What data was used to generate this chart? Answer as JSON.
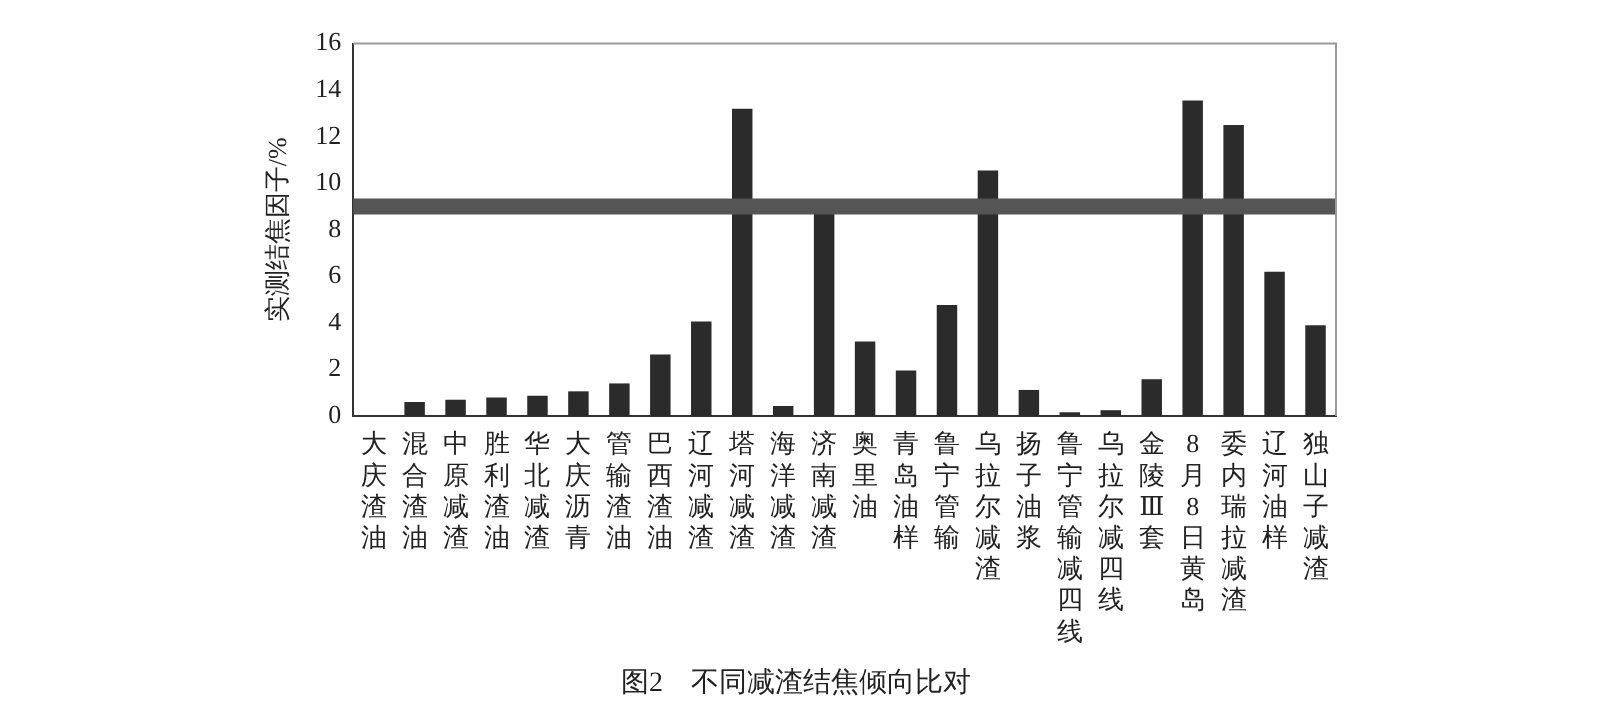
{
  "chart_data": {
    "type": "bar",
    "title": "图2　不同减渣结焦倾向比对",
    "ylabel": "实测结焦因子/%",
    "categories": [
      "大庆渣油",
      "混合渣油",
      "中原减渣",
      "胜利渣油",
      "华北减渣",
      "大庆沥青",
      "管输渣油",
      "巴西渣油",
      "辽河减渣",
      "塔河减渣",
      "海洋减渣",
      "济南减渣",
      "奥里油",
      "青岛油样",
      "鲁宁管输",
      "乌拉尔减渣",
      "扬子油浆",
      "鲁宁管输减四线",
      "乌拉尔减四线",
      "金陵Ⅲ套",
      "8月8日黄岛",
      "委内瑞拉减渣",
      "辽河油样",
      "独山子减渣"
    ],
    "values": [
      0,
      0.6,
      0.7,
      0.8,
      0.87,
      1.06,
      1.4,
      2.64,
      4.06,
      13.2,
      0.43,
      8.7,
      3.2,
      1.96,
      4.77,
      10.55,
      1.12,
      0.16,
      0.25,
      1.58,
      13.55,
      12.5,
      6.2,
      3.9
    ],
    "color": "#2b2b2b",
    "ylim": [
      0,
      16
    ],
    "yticks": [
      0,
      2,
      4,
      6,
      8,
      10,
      12,
      14,
      16
    ],
    "ref_lines": [
      {
        "axis": "y",
        "value": 9,
        "color": "#555555"
      }
    ],
    "grid": false,
    "legend": false
  }
}
